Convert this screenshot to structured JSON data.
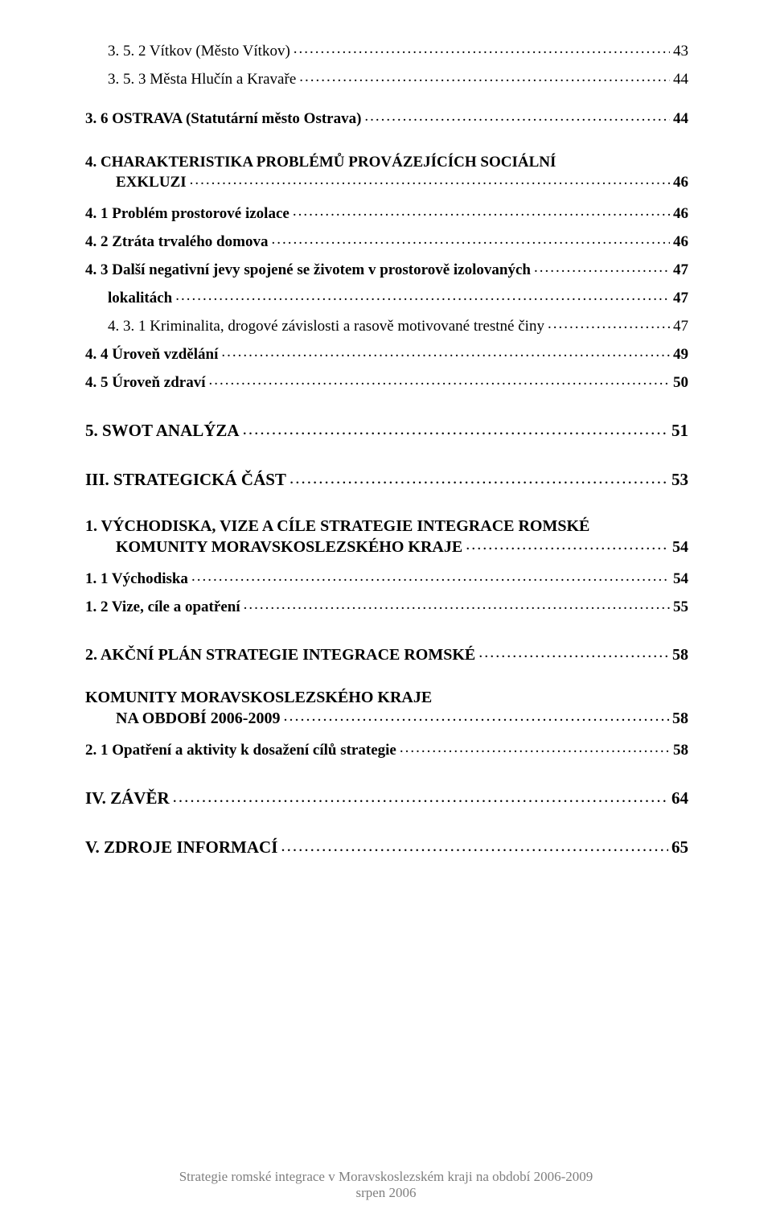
{
  "toc": [
    {
      "type": "row",
      "indentClass": "ind1",
      "style": "plain",
      "label": "3. 5. 2 Vítkov (Město Vítkov)",
      "page": "43",
      "mt": 0
    },
    {
      "type": "row",
      "indentClass": "ind1",
      "style": "plain",
      "label": "3. 5. 3 Města Hlučín a Kravaře",
      "page": "44",
      "mt": 0
    },
    {
      "type": "row",
      "indentClass": "",
      "style": "bold",
      "label": "3. 6  OSTRAVA (Statutární město Ostrava)",
      "page": "44",
      "mt": 24
    },
    {
      "type": "wrap",
      "indentClass": "",
      "style": "bold",
      "line1": "4.  CHARAKTERISTIKA PROBLÉMŮ PROVÁZEJÍCÍCH SOCIÁLNÍ",
      "line2": "EXKLUZI",
      "page": "46",
      "line2Indent": 38,
      "mt": 32
    },
    {
      "type": "row",
      "indentClass": "",
      "style": "bold",
      "label": "4. 1 Problém prostorové izolace",
      "page": "46",
      "mt": 14
    },
    {
      "type": "row",
      "indentClass": "",
      "style": "bold",
      "label": "4. 2 Ztráta trvalého domova",
      "page": "46",
      "mt": 10
    },
    {
      "type": "row",
      "indentClass": "",
      "style": "bold",
      "label": "4. 3 Další negativní jevy spojené se životem v prostorově izolovaných",
      "page": "47",
      "mt": 10
    },
    {
      "type": "row",
      "indentClass": "ind1",
      "style": "bold",
      "label": "lokalitách",
      "page": "47",
      "mt": 2,
      "noLeader": false
    },
    {
      "type": "row",
      "indentClass": "ind1",
      "style": "plain",
      "label": "4. 3. 1  Kriminalita, drogové závislosti a rasově motivované trestné činy",
      "page": "47",
      "mt": 6
    },
    {
      "type": "row",
      "indentClass": "",
      "style": "bold",
      "label": "4. 4 Úroveň vzdělání",
      "page": "49",
      "mt": 10
    },
    {
      "type": "row",
      "indentClass": "",
      "style": "bold",
      "label": "4. 5 Úroveň zdraví",
      "page": "50",
      "mt": 10
    },
    {
      "type": "row",
      "indentClass": "",
      "style": "bold",
      "label": "5. SWOT ANALÝZA",
      "page": "51",
      "mt": 34,
      "size": 21
    },
    {
      "type": "row",
      "indentClass": "",
      "style": "bold",
      "label": "III. STRATEGICKÁ ČÁST",
      "page": "53",
      "mt": 34,
      "size": 21
    },
    {
      "type": "wrap",
      "indentClass": "",
      "style": "bold",
      "line1": "1.  VÝCHODISKA, VIZE A CÍLE STRATEGIE INTEGRACE ROMSKÉ",
      "line2": "KOMUNITY MORAVSKOSLEZSKÉHO KRAJE",
      "page": "54",
      "line2Indent": 38,
      "mt": 34,
      "size": 20
    },
    {
      "type": "row",
      "indentClass": "",
      "style": "bold",
      "label": "1. 1 Východiska",
      "page": "54",
      "mt": 14
    },
    {
      "type": "row",
      "indentClass": "",
      "style": "bold",
      "label": "1. 2 Vize, cíle a opatření",
      "page": "55",
      "mt": 10
    },
    {
      "type": "row",
      "indentClass": "",
      "style": "bold",
      "label": "2.  AKČNÍ PLÁN STRATEGIE INTEGRACE ROMSKÉ",
      "page": "58",
      "mt": 34,
      "size": 20
    },
    {
      "type": "wrap",
      "indentClass": "",
      "style": "bold",
      "line1": "KOMUNITY   MORAVSKOSLEZSKÉHO KRAJE",
      "line2": "NA OBDOBÍ 2006-2009",
      "page": "58",
      "line2Indent": 38,
      "mt": 30,
      "size": 20
    },
    {
      "type": "row",
      "indentClass": "",
      "style": "bold",
      "label": "2. 1 Opatření a aktivity k dosažení cílů strategie",
      "page": "58",
      "mt": 14
    },
    {
      "type": "row",
      "indentClass": "",
      "style": "bold",
      "label": "IV. ZÁVĚR",
      "page": "64",
      "mt": 34,
      "size": 21
    },
    {
      "type": "row",
      "indentClass": "",
      "style": "bold",
      "label": "V. ZDROJE INFORMACÍ",
      "page": "65",
      "mt": 34,
      "size": 21
    }
  ],
  "footer": {
    "line1": "Strategie romské integrace v Moravskoslezském kraji na období 2006-2009",
    "line2": "srpen 2006"
  }
}
